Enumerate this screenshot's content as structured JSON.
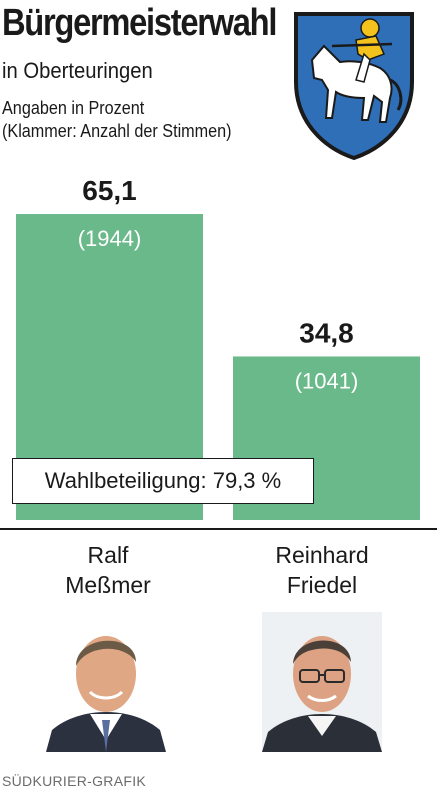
{
  "header": {
    "title": "Bürgermeisterwahl",
    "subtitle": "in Oberteuringen",
    "note_line1": "Angaben in Prozent",
    "note_line2": "(Klammer: Anzahl der Stimmen)"
  },
  "chart_data": {
    "type": "bar",
    "categories": [
      "Ralf Meßmer",
      "Reinhard Friedel"
    ],
    "values": [
      65.1,
      34.8
    ],
    "value_labels": [
      "65,1",
      "34,8"
    ],
    "vote_labels": [
      "(1944)",
      "(1041)"
    ],
    "ylim": [
      0,
      100
    ],
    "bar_color": "#6ab98a"
  },
  "turnout": {
    "label": "Wahlbeteiligung: 79,3 %"
  },
  "candidates": [
    {
      "first": "Ralf",
      "last": "Meßmer"
    },
    {
      "first": "Reinhard",
      "last": "Friedel"
    }
  ],
  "credit": "SÜDKURIER-GRAFIK",
  "icons": {
    "crest": "coat-of-arms-icon"
  }
}
